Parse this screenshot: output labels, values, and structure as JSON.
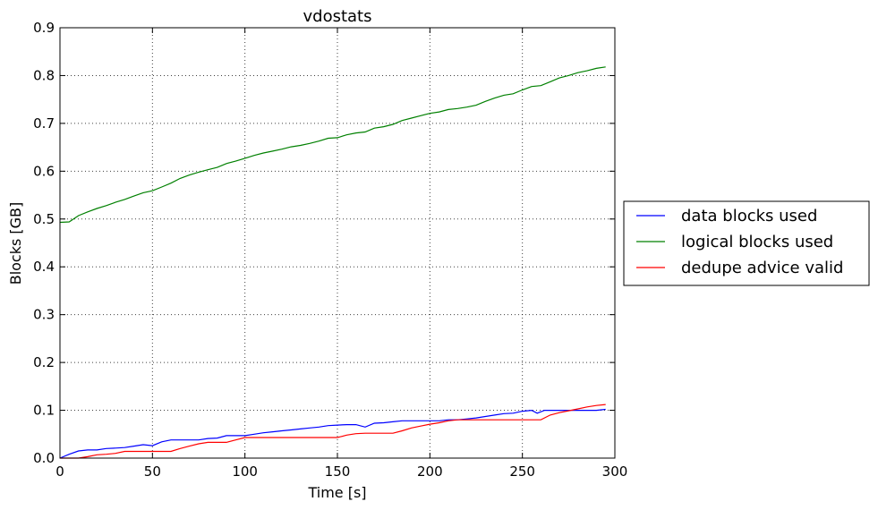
{
  "chart_data": {
    "type": "line",
    "title": "vdostats",
    "xlabel": "Time [s]",
    "ylabel": "Blocks [GB]",
    "xlim": [
      0,
      300
    ],
    "ylim": [
      0,
      0.9
    ],
    "xticks": [
      0,
      50,
      100,
      150,
      200,
      250,
      300
    ],
    "xtick_labels": [
      "0",
      "50",
      "100",
      "150",
      "200",
      "250",
      "300"
    ],
    "yticks": [
      0.0,
      0.1,
      0.2,
      0.3,
      0.4,
      0.5,
      0.6,
      0.7,
      0.8,
      0.9
    ],
    "ytick_labels": [
      "0.0",
      "0.1",
      "0.2",
      "0.3",
      "0.4",
      "0.5",
      "0.6",
      "0.7",
      "0.8",
      "0.9"
    ],
    "grid": true,
    "legend_position": "outside-right",
    "series": [
      {
        "name": "data blocks used",
        "color": "#0000ff",
        "points": [
          [
            0,
            0.0
          ],
          [
            5,
            0.008
          ],
          [
            10,
            0.015
          ],
          [
            15,
            0.017
          ],
          [
            20,
            0.017
          ],
          [
            25,
            0.02
          ],
          [
            30,
            0.021
          ],
          [
            35,
            0.022
          ],
          [
            40,
            0.025
          ],
          [
            45,
            0.028
          ],
          [
            50,
            0.026
          ],
          [
            55,
            0.034
          ],
          [
            60,
            0.038
          ],
          [
            65,
            0.038
          ],
          [
            70,
            0.038
          ],
          [
            75,
            0.038
          ],
          [
            80,
            0.041
          ],
          [
            85,
            0.042
          ],
          [
            90,
            0.047
          ],
          [
            95,
            0.047
          ],
          [
            100,
            0.047
          ],
          [
            105,
            0.05
          ],
          [
            110,
            0.053
          ],
          [
            115,
            0.055
          ],
          [
            120,
            0.057
          ],
          [
            125,
            0.059
          ],
          [
            130,
            0.061
          ],
          [
            135,
            0.063
          ],
          [
            140,
            0.065
          ],
          [
            145,
            0.068
          ],
          [
            150,
            0.069
          ],
          [
            155,
            0.07
          ],
          [
            160,
            0.07
          ],
          [
            165,
            0.065
          ],
          [
            170,
            0.073
          ],
          [
            175,
            0.074
          ],
          [
            180,
            0.076
          ],
          [
            185,
            0.078
          ],
          [
            190,
            0.078
          ],
          [
            195,
            0.078
          ],
          [
            200,
            0.078
          ],
          [
            205,
            0.078
          ],
          [
            210,
            0.08
          ],
          [
            215,
            0.08
          ],
          [
            220,
            0.082
          ],
          [
            225,
            0.084
          ],
          [
            230,
            0.087
          ],
          [
            235,
            0.09
          ],
          [
            240,
            0.093
          ],
          [
            245,
            0.094
          ],
          [
            250,
            0.098
          ],
          [
            255,
            0.1
          ],
          [
            258,
            0.094
          ],
          [
            262,
            0.1
          ],
          [
            265,
            0.1
          ],
          [
            270,
            0.1
          ],
          [
            275,
            0.1
          ],
          [
            280,
            0.1
          ],
          [
            285,
            0.1
          ],
          [
            290,
            0.1
          ],
          [
            295,
            0.102
          ]
        ]
      },
      {
        "name": "logical blocks used",
        "color": "#008000",
        "points": [
          [
            0,
            0.493
          ],
          [
            5,
            0.494
          ],
          [
            10,
            0.507
          ],
          [
            15,
            0.515
          ],
          [
            20,
            0.522
          ],
          [
            25,
            0.528
          ],
          [
            30,
            0.535
          ],
          [
            35,
            0.541
          ],
          [
            40,
            0.548
          ],
          [
            45,
            0.555
          ],
          [
            50,
            0.559
          ],
          [
            55,
            0.567
          ],
          [
            60,
            0.575
          ],
          [
            65,
            0.585
          ],
          [
            70,
            0.592
          ],
          [
            75,
            0.598
          ],
          [
            80,
            0.603
          ],
          [
            85,
            0.608
          ],
          [
            90,
            0.616
          ],
          [
            95,
            0.621
          ],
          [
            100,
            0.627
          ],
          [
            105,
            0.633
          ],
          [
            110,
            0.638
          ],
          [
            115,
            0.642
          ],
          [
            120,
            0.646
          ],
          [
            125,
            0.651
          ],
          [
            130,
            0.654
          ],
          [
            135,
            0.658
          ],
          [
            140,
            0.663
          ],
          [
            145,
            0.669
          ],
          [
            150,
            0.67
          ],
          [
            155,
            0.676
          ],
          [
            160,
            0.68
          ],
          [
            165,
            0.682
          ],
          [
            170,
            0.69
          ],
          [
            175,
            0.693
          ],
          [
            180,
            0.698
          ],
          [
            185,
            0.706
          ],
          [
            190,
            0.711
          ],
          [
            195,
            0.716
          ],
          [
            200,
            0.721
          ],
          [
            205,
            0.724
          ],
          [
            210,
            0.729
          ],
          [
            215,
            0.731
          ],
          [
            220,
            0.734
          ],
          [
            225,
            0.738
          ],
          [
            230,
            0.746
          ],
          [
            235,
            0.753
          ],
          [
            240,
            0.759
          ],
          [
            245,
            0.762
          ],
          [
            250,
            0.77
          ],
          [
            255,
            0.777
          ],
          [
            260,
            0.779
          ],
          [
            265,
            0.787
          ],
          [
            270,
            0.795
          ],
          [
            275,
            0.8
          ],
          [
            280,
            0.806
          ],
          [
            285,
            0.81
          ],
          [
            290,
            0.815
          ],
          [
            295,
            0.818
          ]
        ]
      },
      {
        "name": "dedupe advice valid",
        "color": "#ff0000",
        "points": [
          [
            0,
            0.0
          ],
          [
            5,
            0.0
          ],
          [
            10,
            0.0
          ],
          [
            15,
            0.003
          ],
          [
            20,
            0.007
          ],
          [
            25,
            0.008
          ],
          [
            30,
            0.01
          ],
          [
            35,
            0.014
          ],
          [
            40,
            0.014
          ],
          [
            45,
            0.014
          ],
          [
            50,
            0.014
          ],
          [
            55,
            0.014
          ],
          [
            60,
            0.014
          ],
          [
            65,
            0.02
          ],
          [
            70,
            0.025
          ],
          [
            75,
            0.03
          ],
          [
            80,
            0.033
          ],
          [
            85,
            0.033
          ],
          [
            90,
            0.033
          ],
          [
            95,
            0.038
          ],
          [
            100,
            0.043
          ],
          [
            105,
            0.043
          ],
          [
            110,
            0.043
          ],
          [
            115,
            0.043
          ],
          [
            120,
            0.043
          ],
          [
            125,
            0.043
          ],
          [
            130,
            0.043
          ],
          [
            135,
            0.043
          ],
          [
            140,
            0.043
          ],
          [
            145,
            0.043
          ],
          [
            150,
            0.043
          ],
          [
            155,
            0.048
          ],
          [
            160,
            0.051
          ],
          [
            165,
            0.052
          ],
          [
            170,
            0.052
          ],
          [
            175,
            0.052
          ],
          [
            180,
            0.052
          ],
          [
            185,
            0.057
          ],
          [
            190,
            0.063
          ],
          [
            195,
            0.067
          ],
          [
            200,
            0.071
          ],
          [
            205,
            0.074
          ],
          [
            210,
            0.078
          ],
          [
            215,
            0.08
          ],
          [
            220,
            0.08
          ],
          [
            225,
            0.08
          ],
          [
            230,
            0.08
          ],
          [
            235,
            0.08
          ],
          [
            240,
            0.08
          ],
          [
            245,
            0.08
          ],
          [
            250,
            0.08
          ],
          [
            255,
            0.08
          ],
          [
            260,
            0.08
          ],
          [
            265,
            0.09
          ],
          [
            270,
            0.095
          ],
          [
            275,
            0.099
          ],
          [
            280,
            0.103
          ],
          [
            285,
            0.107
          ],
          [
            290,
            0.11
          ],
          [
            295,
            0.112
          ]
        ]
      }
    ]
  }
}
